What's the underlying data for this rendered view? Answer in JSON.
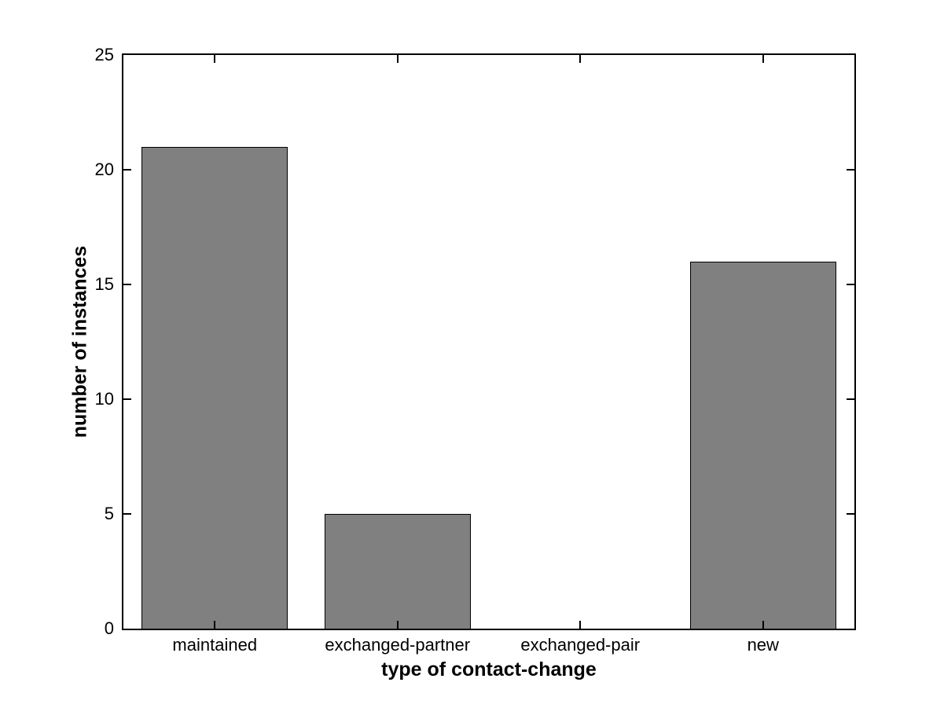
{
  "figure": {
    "background": "#ffffff",
    "axis_color": "#000000",
    "bar_fill": "#808080",
    "bar_edge": "#000000"
  },
  "chart_data": {
    "type": "bar",
    "categories": [
      "maintained",
      "exchanged-partner",
      "exchanged-pair",
      "new"
    ],
    "values": [
      21,
      5,
      0,
      16
    ],
    "title": "",
    "xlabel": "type of contact-change",
    "ylabel": "number of instances",
    "ylim": [
      0,
      25
    ],
    "yticks": [
      0,
      5,
      10,
      15,
      20,
      25
    ],
    "ytick_labels": [
      "0",
      "5",
      "10",
      "15",
      "20",
      "25"
    ],
    "bar_width_fraction": 0.8,
    "grid": false,
    "legend": null,
    "box": true,
    "ticks_inward": true
  }
}
